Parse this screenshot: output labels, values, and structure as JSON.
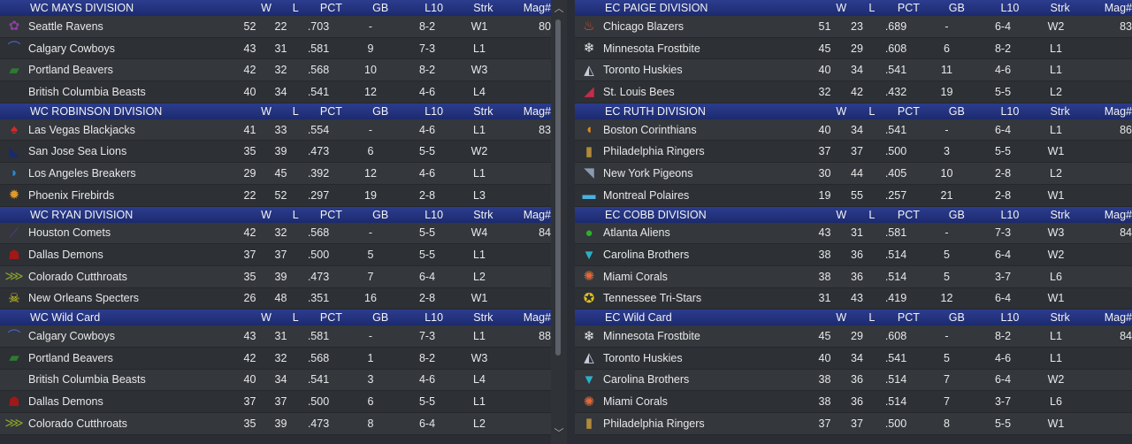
{
  "headers": {
    "w": "W",
    "l": "L",
    "pct": "PCT",
    "gb": "GB",
    "l10": "L10",
    "strk": "Strk",
    "mag": "Mag#"
  },
  "left": [
    {
      "title": "WC MAYS DIVISION",
      "teams": [
        {
          "name": "Seattle Ravens",
          "icon": "raven-logo-icon",
          "glyph": "✿",
          "color": "#8b3fa0",
          "w": "52",
          "l": "22",
          "pct": ".703",
          "gb": "-",
          "l10": "8-2",
          "strk": "W1",
          "mag": "80"
        },
        {
          "name": "Calgary Cowboys",
          "icon": "cowboy-hat-logo-icon",
          "glyph": "⌒",
          "color": "#4a63c8",
          "w": "43",
          "l": "31",
          "pct": ".581",
          "gb": "9",
          "l10": "7-3",
          "strk": "L1",
          "mag": ""
        },
        {
          "name": "Portland Beavers",
          "icon": "beaver-logo-icon",
          "glyph": "▰",
          "color": "#2f7a2f",
          "w": "42",
          "l": "32",
          "pct": ".568",
          "gb": "10",
          "l10": "8-2",
          "strk": "W3",
          "mag": ""
        },
        {
          "name": "British Columbia Beasts",
          "icon": "beast-logo-icon",
          "glyph": "",
          "color": "#333333",
          "w": "40",
          "l": "34",
          "pct": ".541",
          "gb": "12",
          "l10": "4-6",
          "strk": "L4",
          "mag": ""
        }
      ]
    },
    {
      "title": "WC ROBINSON DIVISION",
      "teams": [
        {
          "name": "Las Vegas Blackjacks",
          "icon": "spade-logo-icon",
          "glyph": "♠",
          "color": "#d42a2a",
          "w": "41",
          "l": "33",
          "pct": ".554",
          "gb": "-",
          "l10": "4-6",
          "strk": "L1",
          "mag": "83"
        },
        {
          "name": "San Jose Sea Lions",
          "icon": "sea-lion-logo-icon",
          "glyph": "◣",
          "color": "#1a2a6a",
          "w": "35",
          "l": "39",
          "pct": ".473",
          "gb": "6",
          "l10": "5-5",
          "strk": "W2",
          "mag": ""
        },
        {
          "name": "Los Angeles Breakers",
          "icon": "wave-logo-icon",
          "glyph": "◗",
          "color": "#2a8ad0",
          "w": "29",
          "l": "45",
          "pct": ".392",
          "gb": "12",
          "l10": "4-6",
          "strk": "L1",
          "mag": ""
        },
        {
          "name": "Phoenix Firebirds",
          "icon": "firebird-logo-icon",
          "glyph": "✹",
          "color": "#e09a2a",
          "w": "22",
          "l": "52",
          "pct": ".297",
          "gb": "19",
          "l10": "2-8",
          "strk": "L3",
          "mag": ""
        }
      ]
    },
    {
      "title": "WC RYAN DIVISION",
      "teams": [
        {
          "name": "Houston Comets",
          "icon": "comet-logo-icon",
          "glyph": "⟋",
          "color": "#5a3a9a",
          "w": "42",
          "l": "32",
          "pct": ".568",
          "gb": "-",
          "l10": "5-5",
          "strk": "W4",
          "mag": "84"
        },
        {
          "name": "Dallas Demons",
          "icon": "demon-logo-icon",
          "glyph": "☗",
          "color": "#a01818",
          "w": "37",
          "l": "37",
          "pct": ".500",
          "gb": "5",
          "l10": "5-5",
          "strk": "L1",
          "mag": ""
        },
        {
          "name": "Colorado Cutthroats",
          "icon": "trout-logo-icon",
          "glyph": "⋙",
          "color": "#8aa02a",
          "w": "35",
          "l": "39",
          "pct": ".473",
          "gb": "7",
          "l10": "6-4",
          "strk": "L2",
          "mag": ""
        },
        {
          "name": "New Orleans Specters",
          "icon": "skull-logo-icon",
          "glyph": "☠",
          "color": "#d8d020",
          "w": "26",
          "l": "48",
          "pct": ".351",
          "gb": "16",
          "l10": "2-8",
          "strk": "W1",
          "mag": ""
        }
      ]
    },
    {
      "title": "WC  Wild Card",
      "teams": [
        {
          "name": "Calgary Cowboys",
          "icon": "cowboy-hat-logo-icon",
          "glyph": "⌒",
          "color": "#4a63c8",
          "w": "43",
          "l": "31",
          "pct": ".581",
          "gb": "-",
          "l10": "7-3",
          "strk": "L1",
          "mag": "88"
        },
        {
          "name": "Portland Beavers",
          "icon": "beaver-logo-icon",
          "glyph": "▰",
          "color": "#2f7a2f",
          "w": "42",
          "l": "32",
          "pct": ".568",
          "gb": "1",
          "l10": "8-2",
          "strk": "W3",
          "mag": ""
        },
        {
          "name": "British Columbia Beasts",
          "icon": "beast-logo-icon",
          "glyph": "",
          "color": "#333333",
          "w": "40",
          "l": "34",
          "pct": ".541",
          "gb": "3",
          "l10": "4-6",
          "strk": "L4",
          "mag": ""
        },
        {
          "name": "Dallas Demons",
          "icon": "demon-logo-icon",
          "glyph": "☗",
          "color": "#a01818",
          "w": "37",
          "l": "37",
          "pct": ".500",
          "gb": "6",
          "l10": "5-5",
          "strk": "L1",
          "mag": ""
        },
        {
          "name": "Colorado Cutthroats",
          "icon": "trout-logo-icon",
          "glyph": "⋙",
          "color": "#8aa02a",
          "w": "35",
          "l": "39",
          "pct": ".473",
          "gb": "8",
          "l10": "6-4",
          "strk": "L2",
          "mag": ""
        }
      ]
    }
  ],
  "right": [
    {
      "title": "EC PAIGE DIVISION",
      "teams": [
        {
          "name": "Chicago Blazers",
          "icon": "flame-logo-icon",
          "glyph": "♨",
          "color": "#e0501a",
          "w": "51",
          "l": "23",
          "pct": ".689",
          "gb": "-",
          "l10": "6-4",
          "strk": "W2",
          "mag": "83"
        },
        {
          "name": "Minnesota Frostbite",
          "icon": "snowflake-logo-icon",
          "glyph": "❄",
          "color": "#e8e8e8",
          "w": "45",
          "l": "29",
          "pct": ".608",
          "gb": "6",
          "l10": "8-2",
          "strk": "L1",
          "mag": ""
        },
        {
          "name": "Toronto Huskies",
          "icon": "husky-logo-icon",
          "glyph": "◭",
          "color": "#c8ccd8",
          "w": "40",
          "l": "34",
          "pct": ".541",
          "gb": "11",
          "l10": "4-6",
          "strk": "L1",
          "mag": ""
        },
        {
          "name": "St. Louis Bees",
          "icon": "bee-logo-icon",
          "glyph": "◢",
          "color": "#c82a4a",
          "w": "32",
          "l": "42",
          "pct": ".432",
          "gb": "19",
          "l10": "5-5",
          "strk": "L2",
          "mag": ""
        }
      ]
    },
    {
      "title": "EC RUTH DIVISION",
      "teams": [
        {
          "name": "Boston Corinthians",
          "icon": "helmet-logo-icon",
          "glyph": "◖",
          "color": "#e08a1a",
          "w": "40",
          "l": "34",
          "pct": ".541",
          "gb": "-",
          "l10": "6-4",
          "strk": "L1",
          "mag": "86"
        },
        {
          "name": "Philadelphia Ringers",
          "icon": "bell-logo-icon",
          "glyph": "▮",
          "color": "#b08a3a",
          "w": "37",
          "l": "37",
          "pct": ".500",
          "gb": "3",
          "l10": "5-5",
          "strk": "W1",
          "mag": ""
        },
        {
          "name": "New York Pigeons",
          "icon": "pigeon-logo-icon",
          "glyph": "◥",
          "color": "#8a9ab0",
          "w": "30",
          "l": "44",
          "pct": ".405",
          "gb": "10",
          "l10": "2-8",
          "strk": "L2",
          "mag": ""
        },
        {
          "name": "Montreal Polaires",
          "icon": "bear-logo-icon",
          "glyph": "▬",
          "color": "#4ab0e0",
          "w": "19",
          "l": "55",
          "pct": ".257",
          "gb": "21",
          "l10": "2-8",
          "strk": "W1",
          "mag": ""
        }
      ]
    },
    {
      "title": "EC COBB DIVISION",
      "teams": [
        {
          "name": "Atlanta Aliens",
          "icon": "alien-logo-icon",
          "glyph": "●",
          "color": "#2ab02a",
          "w": "43",
          "l": "31",
          "pct": ".581",
          "gb": "-",
          "l10": "7-3",
          "strk": "W3",
          "mag": "84"
        },
        {
          "name": "Carolina Brothers",
          "icon": "brothers-logo-icon",
          "glyph": "▼",
          "color": "#2ab0c8",
          "w": "38",
          "l": "36",
          "pct": ".514",
          "gb": "5",
          "l10": "6-4",
          "strk": "W2",
          "mag": ""
        },
        {
          "name": "Miami Corals",
          "icon": "coral-logo-icon",
          "glyph": "✺",
          "color": "#e06a3a",
          "w": "38",
          "l": "36",
          "pct": ".514",
          "gb": "5",
          "l10": "3-7",
          "strk": "L6",
          "mag": ""
        },
        {
          "name": "Tennessee Tri-Stars",
          "icon": "tri-star-logo-icon",
          "glyph": "✪",
          "color": "#e0c020",
          "w": "31",
          "l": "43",
          "pct": ".419",
          "gb": "12",
          "l10": "6-4",
          "strk": "W1",
          "mag": ""
        }
      ]
    },
    {
      "title": "EC  Wild Card",
      "teams": [
        {
          "name": "Minnesota Frostbite",
          "icon": "snowflake-logo-icon",
          "glyph": "❄",
          "color": "#e8e8e8",
          "w": "45",
          "l": "29",
          "pct": ".608",
          "gb": "-",
          "l10": "8-2",
          "strk": "L1",
          "mag": "84"
        },
        {
          "name": "Toronto Huskies",
          "icon": "husky-logo-icon",
          "glyph": "◭",
          "color": "#c8ccd8",
          "w": "40",
          "l": "34",
          "pct": ".541",
          "gb": "5",
          "l10": "4-6",
          "strk": "L1",
          "mag": ""
        },
        {
          "name": "Carolina Brothers",
          "icon": "brothers-logo-icon",
          "glyph": "▼",
          "color": "#2ab0c8",
          "w": "38",
          "l": "36",
          "pct": ".514",
          "gb": "7",
          "l10": "6-4",
          "strk": "W2",
          "mag": ""
        },
        {
          "name": "Miami Corals",
          "icon": "coral-logo-icon",
          "glyph": "✺",
          "color": "#e06a3a",
          "w": "38",
          "l": "36",
          "pct": ".514",
          "gb": "7",
          "l10": "3-7",
          "strk": "L6",
          "mag": ""
        },
        {
          "name": "Philadelphia Ringers",
          "icon": "bell-logo-icon",
          "glyph": "▮",
          "color": "#b08a3a",
          "w": "37",
          "l": "37",
          "pct": ".500",
          "gb": "8",
          "l10": "5-5",
          "strk": "W1",
          "mag": ""
        }
      ]
    }
  ]
}
